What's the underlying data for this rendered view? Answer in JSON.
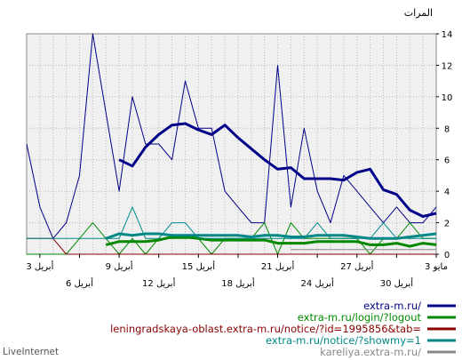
{
  "chart_data": {
    "type": "line",
    "ylabel": "المرات",
    "ylim": [
      0,
      14
    ],
    "yticks": [
      "0",
      "2",
      "4",
      "6",
      "8",
      "10",
      "12",
      "14"
    ],
    "grid": true,
    "legend_position": "bottom-right",
    "xtick_labels": [
      {
        "label": "3 مايو",
        "row": 1,
        "index": 0
      },
      {
        "label": "27 أبريل",
        "row": 1,
        "index": 6
      },
      {
        "label": "21 أبريل",
        "row": 1,
        "index": 12
      },
      {
        "label": "15 أبريل",
        "row": 1,
        "index": 18
      },
      {
        "label": "9 أبريل",
        "row": 1,
        "index": 24
      },
      {
        "label": "3 أبريل",
        "row": 1,
        "index": 30
      },
      {
        "label": "30 أبريل",
        "row": 2,
        "index": 3
      },
      {
        "label": "24 أبريل",
        "row": 2,
        "index": 9
      },
      {
        "label": "18 أبريل",
        "row": 2,
        "index": 15
      },
      {
        "label": "12 أبريل",
        "row": 2,
        "index": 21
      },
      {
        "label": "6 أبريل",
        "row": 2,
        "index": 27
      }
    ],
    "series": [
      {
        "name": "extra-m.ru/",
        "color": "#000088",
        "values": [
          3,
          2,
          2,
          3,
          2,
          3,
          4,
          5,
          2,
          4,
          8,
          3,
          12,
          2,
          2,
          3,
          4,
          8,
          8,
          11,
          6,
          7,
          7,
          10,
          4,
          9,
          14,
          5,
          2,
          1,
          3,
          7
        ]
      },
      {
        "name": "extra-m.ru/",
        "color": "#000088",
        "smoothed": true,
        "values": [
          2.6,
          2.4,
          2.8,
          3.8,
          4.1,
          5.4,
          5.2,
          4.7,
          4.8,
          4.8,
          4.8,
          5.5,
          5.4,
          6.0,
          6.7,
          7.4,
          8.2,
          7.6,
          7.9,
          8.3,
          8.2,
          7.6,
          6.8,
          5.6,
          6.0
        ]
      },
      {
        "name": "extra-m.ru/login/?logout",
        "color": "#008800",
        "values": [
          1,
          1,
          2,
          1,
          1,
          0,
          1,
          1,
          1,
          1,
          1,
          2,
          0,
          2,
          1,
          1,
          1,
          0,
          1,
          1,
          1,
          1,
          0,
          1,
          0,
          1,
          2,
          1,
          0,
          0,
          0,
          0
        ]
      },
      {
        "name": "extra-m.ru/login/?logout",
        "color": "#008800",
        "smoothed": true,
        "values": [
          0.6,
          0.7,
          0.5,
          0.7,
          0.6,
          0.6,
          0.8,
          0.8,
          0.8,
          0.8,
          0.7,
          0.7,
          0.7,
          0.9,
          0.9,
          0.9,
          0.9,
          0.9,
          1.0,
          1.1,
          1.1,
          0.9,
          0.8,
          0.8,
          0.8,
          0.6
        ]
      },
      {
        "name": "leningradskaya-oblast.extra-m.ru/notice/?id=1995856&tab=",
        "color": "#880000",
        "values": [
          0,
          0,
          0,
          0,
          0,
          0,
          0,
          0,
          0,
          0,
          0,
          0,
          0,
          0,
          0,
          0,
          0,
          0,
          0,
          0,
          0,
          0,
          0,
          0,
          0,
          0,
          0,
          0,
          0,
          1,
          1,
          1
        ]
      },
      {
        "name": "extra-m.ru/notice/?showmy=1",
        "color": "#008888",
        "values": [
          1,
          1,
          1,
          1,
          2,
          1,
          1,
          1,
          1,
          2,
          1,
          1,
          1,
          1,
          1,
          1,
          1,
          1,
          1,
          2,
          2,
          1,
          1,
          3,
          1,
          1,
          1,
          1,
          1,
          1,
          1,
          1
        ]
      },
      {
        "name": "extra-m.ru/notice/?showmy=1",
        "color": "#008888",
        "smoothed": true,
        "values": [
          1.3,
          1.2,
          1.1,
          1.0,
          1.0,
          1.0,
          1.1,
          1.2,
          1.2,
          1.2,
          1.1,
          1.1,
          1.2,
          1.2,
          1.1,
          1.2,
          1.2,
          1.2,
          1.2,
          1.2,
          1.2,
          1.3,
          1.3,
          1.2,
          1.3,
          1.0
        ]
      },
      {
        "name": "kareliya.extra-m.ru/",
        "color": "#888888",
        "values": [
          0.3,
          0.3,
          0.3,
          0.3,
          0.3,
          0.3,
          0.3,
          0.3,
          0.3,
          0.3,
          0.3,
          0.3
        ]
      }
    ],
    "legend": [
      {
        "label": "extra-m.ru/",
        "color": "#000088"
      },
      {
        "label": "extra-m.ru/login/?logout",
        "color": "#008800"
      },
      {
        "label": "leningradskaya-oblast.extra-m.ru/notice/?id=1995856&tab=",
        "color": "#880000"
      },
      {
        "label": "extra-m.ru/notice/?showmy=1",
        "color": "#008888"
      },
      {
        "label": "kareliya.extra-m.ru/",
        "color": "#888888"
      }
    ]
  },
  "brand": "LiveInternet"
}
